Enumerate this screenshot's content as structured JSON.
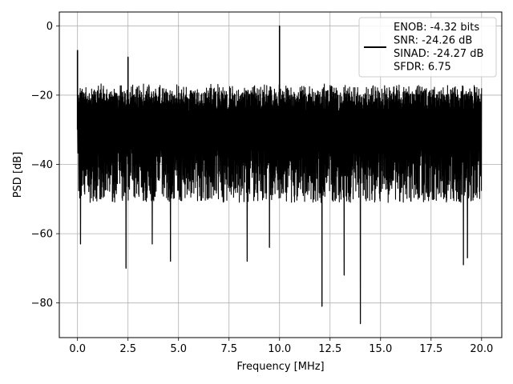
{
  "chart_data": {
    "type": "line",
    "xlabel": "Frequency [MHz]",
    "ylabel": "PSD [dB]",
    "xlim": [
      -0.9,
      21.0
    ],
    "ylim": [
      -90,
      4
    ],
    "xticks": [
      0,
      2.5,
      5,
      7.5,
      10,
      12.5,
      15,
      17.5,
      20
    ],
    "xtick_labels": [
      "0.0",
      "2.5",
      "5.0",
      "7.5",
      "10.0",
      "12.5",
      "15.0",
      "17.5",
      "20.0"
    ],
    "yticks": [
      0,
      -20,
      -40,
      -60,
      -80
    ],
    "ytick_labels": [
      "0",
      "−20",
      "−40",
      "−60",
      "−80"
    ],
    "grid": true,
    "legend_position": "top-right",
    "series": [
      {
        "color": "#000000",
        "x_range": [
          0,
          20
        ],
        "noise_band_db": [
          -47,
          -18
        ],
        "peaks": [
          {
            "x": 0.0,
            "y": -7
          },
          {
            "x": 2.5,
            "y": -9
          },
          {
            "x": 10.0,
            "y": 0
          }
        ],
        "dips": [
          {
            "x": 0.15,
            "y": -63
          },
          {
            "x": 2.4,
            "y": -70
          },
          {
            "x": 3.7,
            "y": -63
          },
          {
            "x": 4.6,
            "y": -68
          },
          {
            "x": 8.4,
            "y": -68
          },
          {
            "x": 9.5,
            "y": -64
          },
          {
            "x": 12.1,
            "y": -81
          },
          {
            "x": 13.2,
            "y": -72
          },
          {
            "x": 14.0,
            "y": -86
          },
          {
            "x": 19.1,
            "y": -69
          },
          {
            "x": 19.3,
            "y": -67
          }
        ]
      }
    ],
    "legend_lines": [
      "ENOB: -4.32 bits",
      "SNR: -24.26 dB",
      "SINAD: -24.27 dB",
      "SFDR: 6.75"
    ]
  }
}
